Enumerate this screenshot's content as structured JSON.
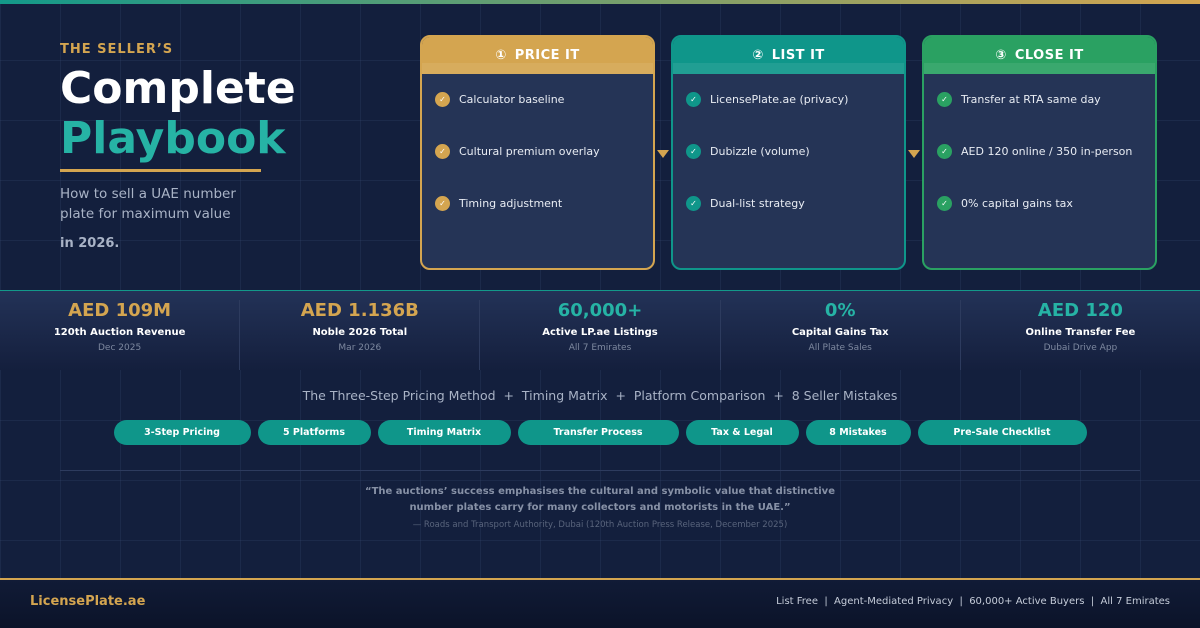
{
  "hero": {
    "eyebrow": "THE SELLER’S",
    "title_line1": "Complete",
    "title_line2": "Playbook",
    "subtitle": "How to sell a UAE number plate for maximum value",
    "year": "in 2026."
  },
  "steps": [
    {
      "num": "①",
      "title": "PRICE IT",
      "color": "#d4a550",
      "items": [
        "Calculator baseline",
        "Cultural premium overlay",
        "Timing adjustment"
      ]
    },
    {
      "num": "②",
      "title": "LIST IT",
      "color": "#0f968a",
      "items": [
        "LicensePlate.ae (privacy)",
        "Dubizzle (volume)",
        "Dual-list strategy"
      ]
    },
    {
      "num": "③",
      "title": "CLOSE IT",
      "color": "#2aa162",
      "items": [
        "Transfer at RTA same day",
        "AED 120 online / 350 in-person",
        "0% capital gains tax"
      ]
    }
  ],
  "stats": [
    {
      "value": "AED 109M",
      "label": "120th Auction Revenue",
      "sub": "Dec 2025",
      "color": "#d4a550"
    },
    {
      "value": "AED 1.136B",
      "label": "Noble 2026 Total",
      "sub": "Mar 2026",
      "color": "#d4a550"
    },
    {
      "value": "60,000+",
      "label": "Active LP.ae Listings",
      "sub": "All 7 Emirates",
      "color": "#26b3a5"
    },
    {
      "value": "0%",
      "label": "Capital Gains Tax",
      "sub": "All Plate Sales",
      "color": "#26b3a5"
    },
    {
      "value": "AED 120",
      "label": "Online Transfer Fee",
      "sub": "Dubai Drive App",
      "color": "#26b3a5"
    }
  ],
  "tagline": "The Three-Step Pricing Method  +  Timing Matrix  +  Platform Comparison  +  8 Seller Mistakes",
  "pills": [
    "3-Step Pricing",
    "5 Platforms",
    "Timing Matrix",
    "Transfer Process",
    "Tax & Legal",
    "8 Mistakes",
    "Pre-Sale Checklist"
  ],
  "quote": {
    "line1": "“The auctions’ success emphasises the cultural and symbolic value that distinctive",
    "line2": "number plates carry for many collectors and motorists in the UAE.”",
    "cite": "— Roads and Transport Authority, Dubai (120th Auction Press Release, December 2025)"
  },
  "footer": {
    "brand": "LicensePlate.ae",
    "text": "List Free  |  Agent-Mediated Privacy  |  60,000+ Active Buyers  |  All 7 Emirates"
  }
}
